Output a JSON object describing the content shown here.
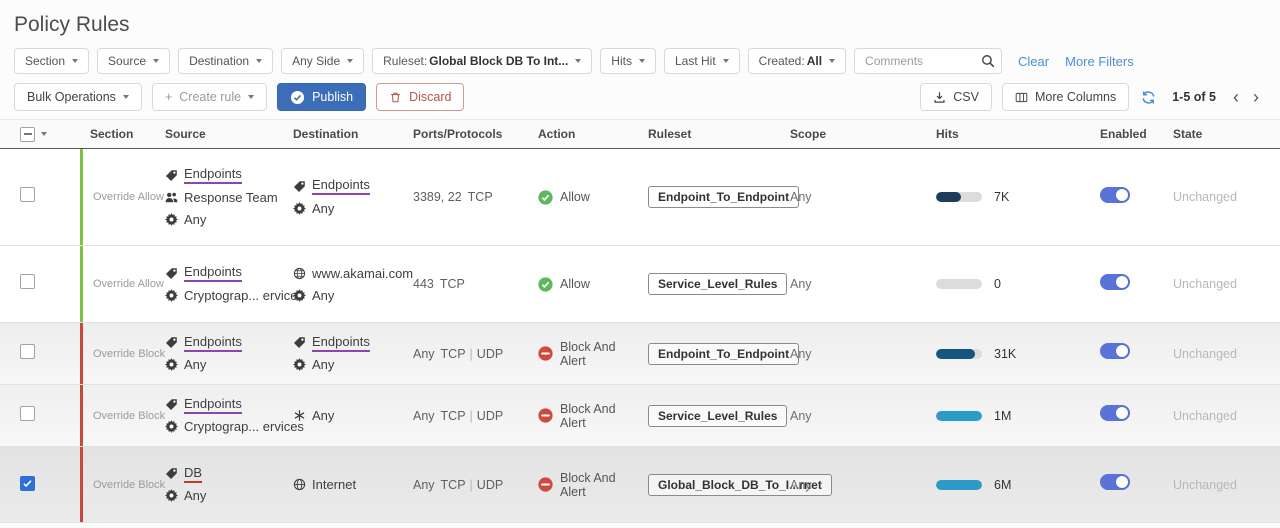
{
  "page": {
    "title": "Policy Rules"
  },
  "filter_bar": {
    "filters": [
      {
        "id": "section",
        "label": "Section",
        "value": ""
      },
      {
        "id": "source",
        "label": "Source",
        "value": ""
      },
      {
        "id": "destination",
        "label": "Destination",
        "value": ""
      },
      {
        "id": "any-side",
        "label": "Any Side",
        "value": ""
      },
      {
        "id": "ruleset",
        "label": "Ruleset:",
        "value": "Global Block DB To Int..."
      },
      {
        "id": "hits",
        "label": "Hits",
        "value": ""
      },
      {
        "id": "last-hit",
        "label": "Last Hit",
        "value": ""
      },
      {
        "id": "created",
        "label": "Created:",
        "value": "All"
      }
    ],
    "comments_placeholder": "Comments",
    "clear_label": "Clear",
    "more_filters_label": "More Filters"
  },
  "toolbar": {
    "bulk_operations_label": "Bulk Operations",
    "create_rule_label": "Create rule",
    "publish_label": "Publish",
    "discard_label": "Discard",
    "csv_label": "CSV",
    "more_columns_label": "More Columns",
    "pagination": "1-5 of 5",
    "prev_label": "‹",
    "next_label": "›"
  },
  "table": {
    "columns": [
      "Section",
      "Source",
      "Destination",
      "Ports/Protocols",
      "Action",
      "Ruleset",
      "Scope",
      "Hits",
      "Enabled",
      "State"
    ],
    "rows": [
      {
        "selected": false,
        "section": {
          "label": "Override Allow",
          "type": "allow"
        },
        "source": [
          {
            "icon": "tag",
            "text": "Endpoints",
            "underline": "#8e44ad"
          },
          {
            "icon": "users",
            "text": "Response Team"
          },
          {
            "icon": "gear",
            "text": "Any"
          }
        ],
        "destination": [
          {
            "icon": "tag",
            "text": "Endpoints",
            "underline": "#8e44ad"
          },
          {
            "icon": "gear",
            "text": "Any"
          }
        ],
        "ports": "3389, 22",
        "protocols": [
          "TCP"
        ],
        "action": {
          "label": "Allow",
          "type": "allow"
        },
        "ruleset": "Endpoint_To_Endpoint",
        "scope": "Any",
        "hits": {
          "label": "7K",
          "percent": 55,
          "color": "#1e3c5c"
        },
        "enabled": true,
        "state": "Unchanged"
      },
      {
        "selected": false,
        "section": {
          "label": "Override Allow",
          "type": "allow"
        },
        "source": [
          {
            "icon": "tag",
            "text": "Endpoints",
            "underline": "#8e44ad"
          },
          {
            "icon": "gear",
            "text": "Cryptograp... ervices"
          }
        ],
        "destination": [
          {
            "icon": "globe",
            "text": "www.akamai.com"
          },
          {
            "icon": "gear",
            "text": "Any"
          }
        ],
        "ports": "443",
        "protocols": [
          "TCP"
        ],
        "action": {
          "label": "Allow",
          "type": "allow"
        },
        "ruleset": "Service_Level_Rules",
        "scope": "Any",
        "hits": {
          "label": "0",
          "percent": 0,
          "color": "#dcdcdc"
        },
        "enabled": true,
        "state": "Unchanged"
      },
      {
        "selected": false,
        "section": {
          "label": "Override Block",
          "type": "block"
        },
        "source": [
          {
            "icon": "tag",
            "text": "Endpoints",
            "underline": "#8e44ad"
          },
          {
            "icon": "gear",
            "text": "Any"
          }
        ],
        "destination": [
          {
            "icon": "tag",
            "text": "Endpoints",
            "underline": "#8e44ad"
          },
          {
            "icon": "gear",
            "text": "Any"
          }
        ],
        "ports": "Any",
        "protocols": [
          "TCP",
          "UDP"
        ],
        "action": {
          "label": "Block And Alert",
          "type": "block"
        },
        "ruleset": "Endpoint_To_Endpoint",
        "scope": "Any",
        "hits": {
          "label": "31K",
          "percent": 85,
          "color": "#15567e"
        },
        "enabled": true,
        "state": "Unchanged"
      },
      {
        "selected": false,
        "section": {
          "label": "Override Block",
          "type": "block"
        },
        "source": [
          {
            "icon": "tag",
            "text": "Endpoints",
            "underline": "#8e44ad"
          },
          {
            "icon": "gear",
            "text": "Cryptograp... ervices"
          }
        ],
        "destination": [
          {
            "icon": "asterisk",
            "text": "Any"
          }
        ],
        "ports": "Any",
        "protocols": [
          "TCP",
          "UDP"
        ],
        "action": {
          "label": "Block And Alert",
          "type": "block"
        },
        "ruleset": "Service_Level_Rules",
        "scope": "Any",
        "hits": {
          "label": "1M",
          "percent": 100,
          "color": "#2b9bc8"
        },
        "enabled": true,
        "state": "Unchanged"
      },
      {
        "selected": true,
        "section": {
          "label": "Override Block",
          "type": "block"
        },
        "source": [
          {
            "icon": "tag",
            "text": "DB",
            "underline": "#c0392b"
          },
          {
            "icon": "gear",
            "text": "Any"
          }
        ],
        "destination": [
          {
            "icon": "internet",
            "text": "Internet"
          }
        ],
        "ports": "Any",
        "protocols": [
          "TCP",
          "UDP"
        ],
        "action": {
          "label": "Block And Alert",
          "type": "block"
        },
        "ruleset": "Global_Block_DB_To_I...rnet",
        "scope": "Any",
        "hits": {
          "label": "6M",
          "percent": 100,
          "color": "#2b9bc8"
        },
        "enabled": true,
        "state": "Unchanged"
      }
    ]
  },
  "colors": {
    "accent_blue": "#3b6db8",
    "link_blue": "#4a90d2",
    "allow_green": "#5eb95e",
    "block_red": "#ce4a41",
    "section_allow_bar": "#7cc344",
    "section_block_bar": "#c7493d",
    "toggle_on": "#5a73d8"
  }
}
